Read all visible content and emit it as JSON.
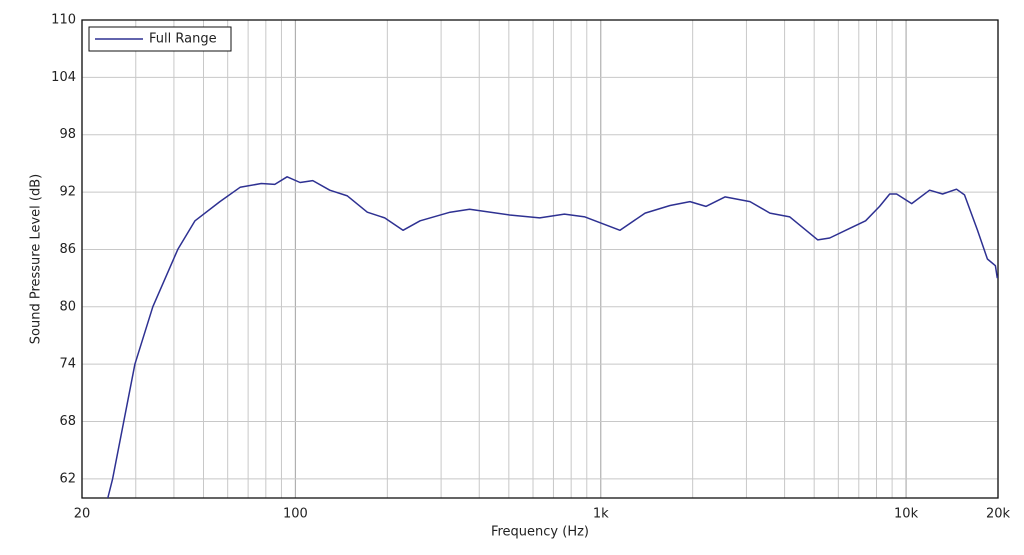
{
  "chart_data": {
    "type": "line",
    "xlabel": "Frequency (Hz)",
    "ylabel": "Sound Pressure Level (dB)",
    "xscale": "log",
    "grid": true,
    "xlim": [
      20,
      20000
    ],
    "ylim": [
      60,
      110
    ],
    "xticks": [
      20,
      100,
      {
        "value": 1000,
        "label": "1k"
      },
      {
        "value": 10000,
        "label": "10k"
      },
      {
        "value": 20000,
        "label": "20k"
      }
    ],
    "xgrid_minor": [
      30,
      40,
      50,
      60,
      70,
      80,
      90,
      200,
      300,
      400,
      500,
      600,
      700,
      800,
      900,
      2000,
      3000,
      4000,
      5000,
      6000,
      7000,
      8000,
      9000
    ],
    "yticks": [
      62,
      68,
      74,
      80,
      86,
      92,
      98,
      104,
      110
    ],
    "legend": "top-left",
    "series": [
      {
        "name": "Full Range",
        "color": "#2e3192",
        "x": [
          24.3,
          25.2,
          29.8,
          34.1,
          41.2,
          46.9,
          56.6,
          65.9,
          77.3,
          85.6,
          93.9,
          103.6,
          114,
          129.6,
          148,
          172,
          196,
          225,
          256,
          321,
          372,
          503,
          631,
          760,
          887,
          1156,
          1397,
          1687,
          1960,
          2210,
          2552,
          3082,
          3580,
          4160,
          5140,
          5620,
          6530,
          7370,
          8190,
          8840,
          9310,
          10430,
          11940,
          13170,
          14630,
          15540,
          17140,
          18470,
          19610,
          19900
        ],
        "values": [
          60,
          62,
          74,
          80,
          86,
          89,
          91,
          92.5,
          92.9,
          92.8,
          93.6,
          93.0,
          93.2,
          92.2,
          91.6,
          89.9,
          89.3,
          88.0,
          89.0,
          89.9,
          90.2,
          89.6,
          89.3,
          89.7,
          89.4,
          88.0,
          89.8,
          90.6,
          91.0,
          90.5,
          91.5,
          91.0,
          89.8,
          89.4,
          87.0,
          87.2,
          88.2,
          89.0,
          90.5,
          91.8,
          91.8,
          90.8,
          92.2,
          91.8,
          92.3,
          91.7,
          88.0,
          85.0,
          84.3,
          83.0
        ]
      }
    ]
  }
}
